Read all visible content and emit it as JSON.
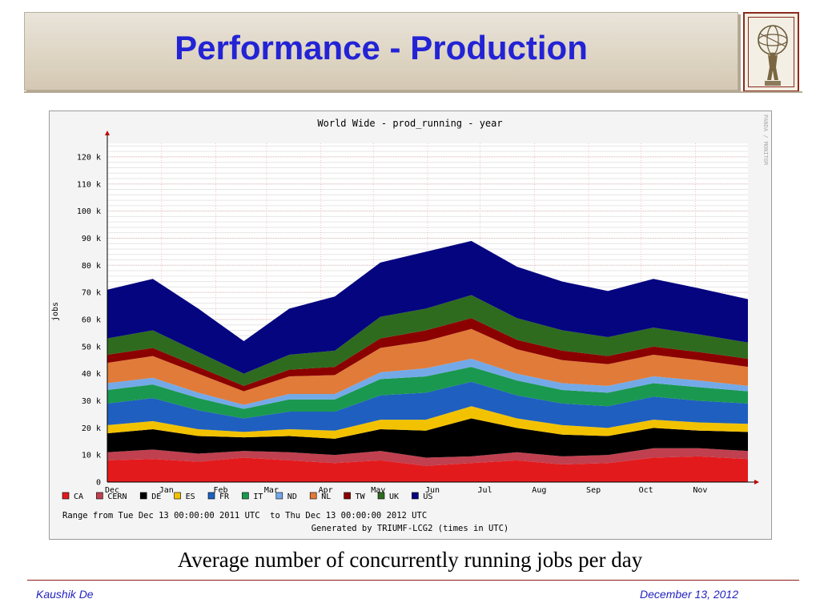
{
  "slide": {
    "title": "Performance - Production",
    "caption": "Average number of concurrently running jobs per day",
    "author": "Kaushik De",
    "date": "December 13, 2012",
    "logo_icon": "atlas-statue-logo"
  },
  "chart_data": {
    "type": "area",
    "stacked": true,
    "title": "World Wide - prod_running - year",
    "ylabel": "jobs",
    "xlabel": "",
    "ylim": [
      0,
      125000
    ],
    "yticks": [
      {
        "value": 0,
        "label": "0"
      },
      {
        "value": 10000,
        "label": "10 k"
      },
      {
        "value": 20000,
        "label": "20 k"
      },
      {
        "value": 30000,
        "label": "30 k"
      },
      {
        "value": 40000,
        "label": "40 k"
      },
      {
        "value": 50000,
        "label": "50 k"
      },
      {
        "value": 60000,
        "label": "60 k"
      },
      {
        "value": 70000,
        "label": "70 k"
      },
      {
        "value": 80000,
        "label": "80 k"
      },
      {
        "value": 90000,
        "label": "90 k"
      },
      {
        "value": 100000,
        "label": "100 k"
      },
      {
        "value": 110000,
        "label": "110 k"
      },
      {
        "value": 120000,
        "label": "120 k"
      }
    ],
    "x_range": [
      "2011-12-13",
      "2012-12-13"
    ],
    "xticks": [
      {
        "date": "2011-12-13",
        "label": "Dec"
      },
      {
        "date": "2012-01-13",
        "label": "Jan"
      },
      {
        "date": "2012-02-13",
        "label": "Feb"
      },
      {
        "date": "2012-03-13",
        "label": "Mar"
      },
      {
        "date": "2012-04-13",
        "label": "Apr"
      },
      {
        "date": "2012-05-13",
        "label": "May"
      },
      {
        "date": "2012-06-13",
        "label": "Jun"
      },
      {
        "date": "2012-07-13",
        "label": "Jul"
      },
      {
        "date": "2012-08-13",
        "label": "Aug"
      },
      {
        "date": "2012-09-13",
        "label": "Sep"
      },
      {
        "date": "2012-10-13",
        "label": "Oct"
      },
      {
        "date": "2012-11-13",
        "label": "Nov"
      }
    ],
    "grid": true,
    "legend_position": "bottom",
    "range_text": "Range from Tue Dec 13 00:00:00 2011 UTC  to Thu Dec 13 00:00:00 2012 UTC",
    "generated_text": "Generated by TRIUMF-LCG2 (times in UTC)",
    "side_text": "PANDA / MONITOR",
    "series": [
      {
        "name": "CA",
        "color": "#e31a1c",
        "values": [
          8000,
          8500,
          7500,
          9000,
          8000,
          7000,
          8000,
          6000,
          7000,
          8000,
          6500,
          7000,
          9000,
          9500,
          8500
        ]
      },
      {
        "name": "CERN",
        "color": "#c0404f",
        "values": [
          3000,
          3500,
          3000,
          2500,
          3000,
          3000,
          3500,
          3000,
          2500,
          3000,
          3000,
          3000,
          3500,
          3000,
          3000
        ]
      },
      {
        "name": "DE",
        "color": "#000000",
        "values": [
          7000,
          7500,
          6500,
          5000,
          6000,
          6000,
          8000,
          10000,
          14000,
          9000,
          8000,
          7000,
          7500,
          6500,
          7000
        ]
      },
      {
        "name": "ES",
        "color": "#f2c200",
        "values": [
          3000,
          3000,
          2500,
          2000,
          2500,
          3000,
          3500,
          4000,
          4500,
          3500,
          3500,
          3000,
          3000,
          3000,
          3000
        ]
      },
      {
        "name": "FR",
        "color": "#1f5fbf",
        "values": [
          8000,
          8500,
          7000,
          5000,
          6500,
          7000,
          9000,
          10000,
          9000,
          8500,
          8000,
          8000,
          8500,
          8000,
          7500
        ]
      },
      {
        "name": "IT",
        "color": "#1a9850",
        "values": [
          5000,
          5000,
          4500,
          3500,
          4500,
          4500,
          6000,
          6000,
          5500,
          5500,
          5000,
          5000,
          5000,
          5000,
          4500
        ]
      },
      {
        "name": "ND",
        "color": "#74a9e8",
        "values": [
          2500,
          2500,
          2000,
          1500,
          2000,
          2000,
          2500,
          3000,
          3000,
          2500,
          2500,
          2500,
          2500,
          2500,
          2000
        ]
      },
      {
        "name": "NL",
        "color": "#e07b39",
        "values": [
          7500,
          8000,
          7000,
          5000,
          6500,
          7000,
          9000,
          10000,
          11000,
          9000,
          8500,
          8000,
          8000,
          7500,
          7000
        ]
      },
      {
        "name": "TW",
        "color": "#8b0000",
        "values": [
          3000,
          3000,
          2500,
          2000,
          2500,
          3000,
          3500,
          4000,
          4000,
          3500,
          3500,
          3000,
          3000,
          3000,
          3000
        ]
      },
      {
        "name": "UK",
        "color": "#2e6b1f",
        "values": [
          6000,
          6500,
          5500,
          4500,
          5500,
          6000,
          8000,
          8000,
          8500,
          8000,
          7500,
          7000,
          7000,
          6500,
          6000
        ]
      },
      {
        "name": "US",
        "color": "#050580",
        "values": [
          18000,
          19000,
          16000,
          12000,
          17000,
          20000,
          20000,
          21000,
          20000,
          19000,
          18000,
          17000,
          18000,
          17000,
          16000
        ]
      }
    ],
    "sample_dates": [
      "2011-12-13",
      "2012-01-08",
      "2012-02-03",
      "2012-02-29",
      "2012-03-26",
      "2012-04-21",
      "2012-05-17",
      "2012-06-12",
      "2012-07-08",
      "2012-08-03",
      "2012-08-29",
      "2012-09-24",
      "2012-10-20",
      "2012-11-15",
      "2012-12-13"
    ]
  }
}
